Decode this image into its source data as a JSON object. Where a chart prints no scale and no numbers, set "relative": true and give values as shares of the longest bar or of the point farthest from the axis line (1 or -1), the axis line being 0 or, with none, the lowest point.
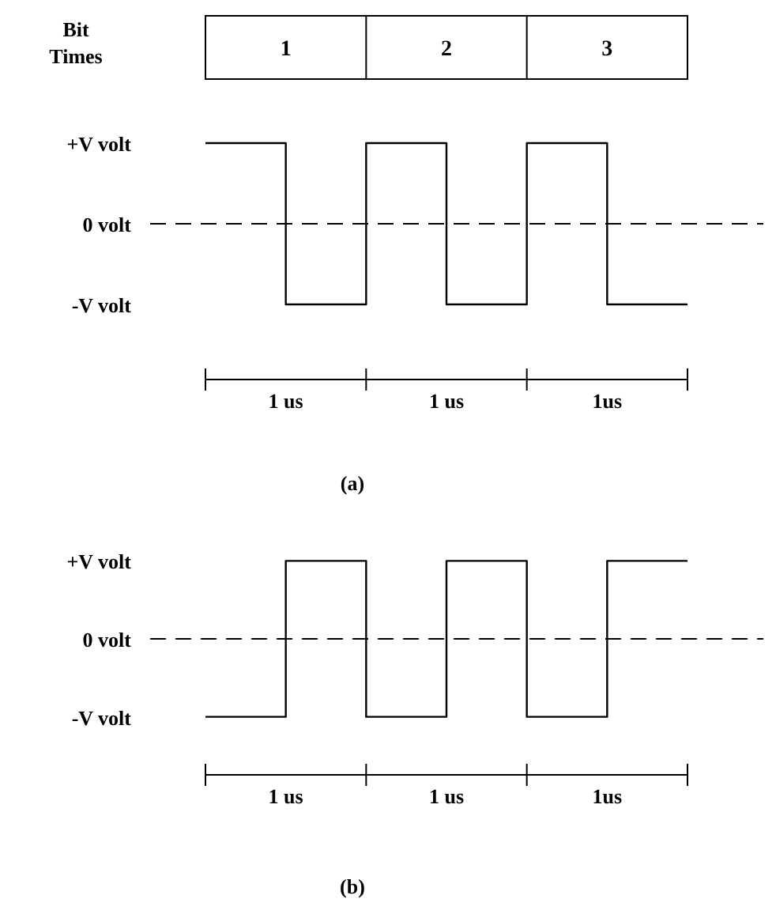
{
  "chart_data": [
    {
      "type": "step",
      "title": "(a)",
      "relative": true,
      "categories": [
        null,
        null,
        null,
        null,
        null,
        null,
        null
      ],
      "values": [
        1,
        -1,
        1,
        -1,
        1,
        -1,
        -1
      ],
      "color": "#000000",
      "ref_lines": [
        {
          "axis": "y",
          "value": 0,
          "line_style": "dashed"
        }
      ],
      "annotations": [
        "Bit Times",
        "1",
        "2",
        "3",
        "+V volt",
        "0 volt",
        "-V volt",
        "1 us",
        "1 us",
        "1us"
      ]
    },
    {
      "type": "step",
      "title": "(b)",
      "relative": true,
      "categories": [
        null,
        null,
        null,
        null,
        null,
        null,
        null
      ],
      "values": [
        -1,
        1,
        -1,
        1,
        -1,
        1,
        1
      ],
      "color": "#000000",
      "ref_lines": [
        {
          "axis": "y",
          "value": 0,
          "line_style": "dashed"
        }
      ],
      "annotations": [
        "+V volt",
        "0 volt",
        "-V volt",
        "1 us",
        "1 us",
        "1us"
      ]
    }
  ]
}
